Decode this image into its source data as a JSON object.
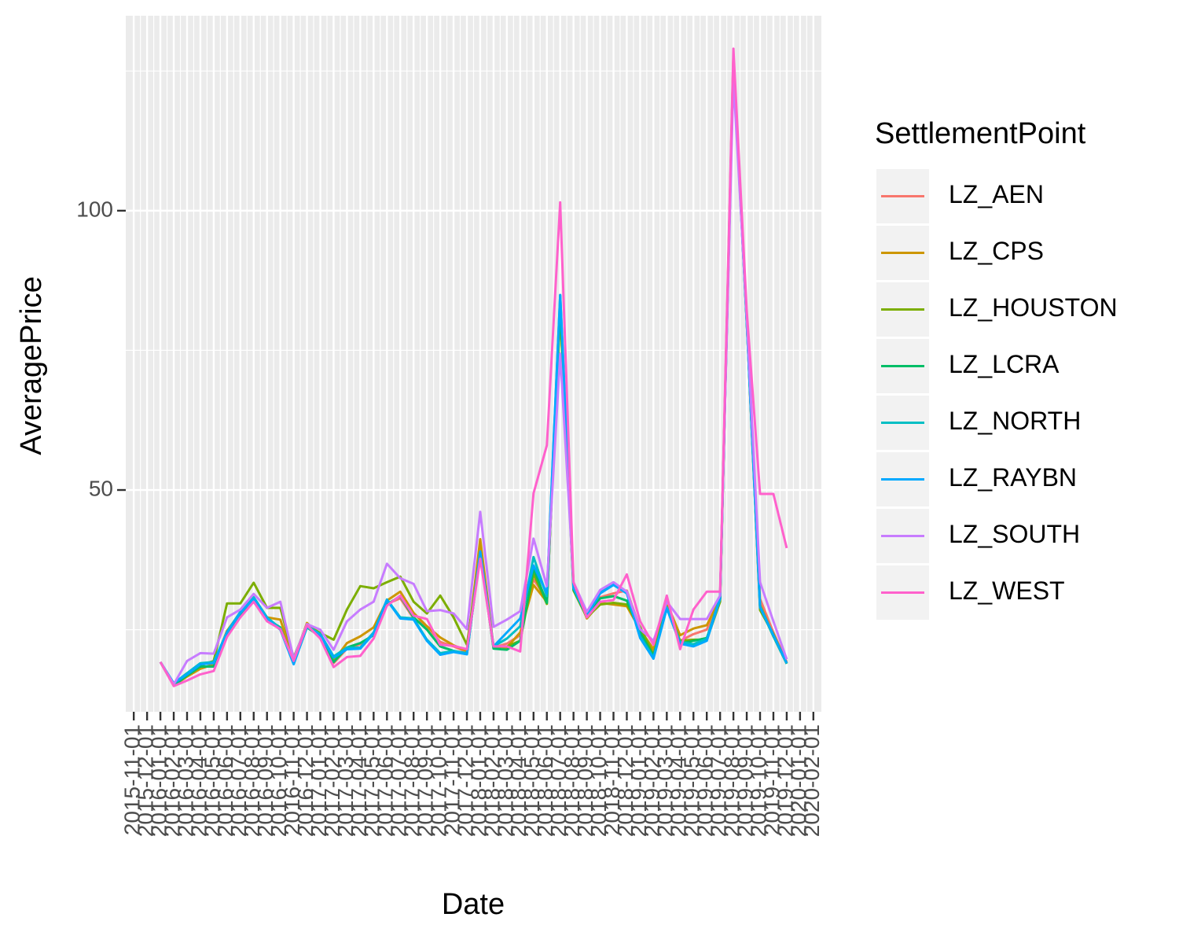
{
  "chart_data": {
    "type": "line",
    "x_label": "Date",
    "y_label": "AveragePrice",
    "legend_title": "SettlementPoint",
    "legend_position": "right",
    "grid": true,
    "background": "#EBEBEB",
    "categories": [
      "2015-11-01",
      "2015-12-01",
      "2016-01-01",
      "2016-02-01",
      "2016-03-01",
      "2016-04-01",
      "2016-05-01",
      "2016-06-01",
      "2016-07-01",
      "2016-08-01",
      "2016-09-01",
      "2016-10-01",
      "2016-11-01",
      "2016-12-01",
      "2017-01-01",
      "2017-02-01",
      "2017-03-01",
      "2017-04-01",
      "2017-05-01",
      "2017-06-01",
      "2017-07-01",
      "2017-08-01",
      "2017-09-01",
      "2017-10-01",
      "2017-11-01",
      "2017-12-01",
      "2018-01-01",
      "2018-02-01",
      "2018-03-01",
      "2018-04-01",
      "2018-05-01",
      "2018-06-01",
      "2018-07-01",
      "2018-08-01",
      "2018-09-01",
      "2018-10-01",
      "2018-11-01",
      "2018-12-01",
      "2019-01-01",
      "2019-02-01",
      "2019-03-01",
      "2019-04-01",
      "2019-05-01",
      "2019-06-01",
      "2019-07-01",
      "2019-08-01",
      "2019-09-01",
      "2019-10-01",
      "2019-11-01",
      "2019-12-01",
      "2020-01-01",
      "2020-02-01"
    ],
    "ylim": [
      10.3,
      134.9
    ],
    "yticks": [
      50,
      100
    ],
    "minor_yticks": [
      25,
      75,
      125
    ],
    "series": [
      {
        "name": "LZ_AEN",
        "color": "#F8766D",
        "values": [
          null,
          null,
          19.2,
          15.2,
          16.8,
          18.2,
          18.6,
          24.0,
          27.6,
          30.0,
          26.8,
          25.0,
          19.2,
          25.6,
          23.6,
          19.0,
          21.6,
          22.4,
          24.2,
          29.6,
          30.6,
          27.0,
          25.6,
          22.8,
          22.0,
          21.0,
          39.5,
          21.8,
          22.5,
          24.0,
          34.0,
          30.5,
          82.0,
          33.0,
          27.3,
          30.8,
          31.5,
          32.0,
          25.2,
          21.0,
          29.5,
          23.0,
          24.2,
          25.0,
          30.8,
          127.5,
          80.5,
          30.5,
          24.5,
          19.2,
          null,
          null
        ]
      },
      {
        "name": "LZ_CPS",
        "color": "#CD9600",
        "values": [
          null,
          null,
          19.2,
          15.0,
          16.6,
          18.0,
          18.8,
          24.8,
          28.0,
          30.6,
          27.2,
          26.8,
          19.6,
          26.2,
          24.0,
          19.4,
          22.6,
          23.8,
          25.4,
          30.2,
          31.8,
          28.0,
          25.6,
          23.6,
          22.2,
          21.2,
          41.2,
          22.0,
          21.8,
          24.5,
          33.0,
          30.0,
          81.5,
          33.2,
          27.0,
          29.8,
          29.5,
          29.2,
          25.0,
          21.5,
          29.8,
          24.0,
          25.2,
          25.8,
          30.5,
          127.8,
          80.2,
          29.5,
          24.0,
          19.0,
          null,
          null
        ]
      },
      {
        "name": "LZ_HOUSTON",
        "color": "#7CAE00",
        "values": [
          null,
          null,
          19.2,
          15.2,
          17.2,
          18.6,
          19.4,
          29.7,
          29.7,
          33.4,
          28.9,
          28.9,
          20.0,
          25.8,
          24.4,
          23.2,
          28.6,
          32.8,
          32.4,
          33.5,
          34.5,
          30.0,
          27.9,
          31.1,
          27.2,
          22.3,
          38.5,
          21.8,
          22.0,
          23.0,
          35.0,
          29.6,
          82.5,
          32.0,
          27.2,
          29.5,
          29.8,
          29.5,
          25.5,
          20.5,
          29.0,
          23.0,
          23.2,
          23.2,
          30.0,
          126.5,
          80.0,
          28.5,
          24.2,
          19.0,
          null,
          null
        ]
      },
      {
        "name": "LZ_LCRA",
        "color": "#00BE67",
        "values": [
          null,
          null,
          19.2,
          15.0,
          16.8,
          18.4,
          18.4,
          24.2,
          27.8,
          30.3,
          26.9,
          25.4,
          19.0,
          25.4,
          23.8,
          19.2,
          21.8,
          22.6,
          24.0,
          29.5,
          31.0,
          27.2,
          25.0,
          22.0,
          21.2,
          20.6,
          38.8,
          21.6,
          21.4,
          23.0,
          36.0,
          29.8,
          83.0,
          32.2,
          27.4,
          30.6,
          31.0,
          30.2,
          24.5,
          20.3,
          29.0,
          22.5,
          23.0,
          23.5,
          30.5,
          126.8,
          80.4,
          29.0,
          23.8,
          18.9,
          null,
          null
        ]
      },
      {
        "name": "LZ_NORTH",
        "color": "#00BFC4",
        "values": [
          null,
          null,
          19.2,
          15.4,
          17.2,
          19.0,
          19.2,
          24.6,
          28.2,
          30.8,
          27.2,
          25.2,
          18.9,
          25.7,
          24.2,
          20.2,
          21.8,
          21.8,
          24.5,
          30.4,
          27.2,
          27.0,
          23.2,
          20.8,
          21.2,
          20.8,
          38.6,
          22.0,
          23.4,
          25.6,
          38.0,
          31.0,
          84.9,
          32.8,
          27.6,
          31.8,
          33.2,
          31.8,
          23.8,
          20.0,
          29.0,
          22.8,
          22.4,
          23.4,
          30.8,
          126.2,
          80.2,
          29.2,
          24.0,
          19.0,
          null,
          null
        ]
      },
      {
        "name": "LZ_RAYBN",
        "color": "#00A9FF",
        "values": [
          null,
          null,
          19.2,
          15.4,
          17.0,
          18.8,
          19.0,
          24.5,
          28.0,
          30.5,
          27.0,
          25.0,
          18.8,
          25.5,
          24.0,
          20.0,
          21.5,
          21.6,
          24.3,
          30.3,
          27.0,
          26.8,
          23.0,
          20.5,
          21.0,
          20.6,
          39.0,
          22.0,
          24.5,
          27.0,
          36.5,
          31.5,
          84.9,
          32.5,
          27.5,
          31.5,
          33.0,
          31.5,
          23.5,
          19.8,
          28.8,
          22.5,
          22.0,
          23.0,
          30.5,
          126.0,
          80.0,
          29.0,
          24.0,
          19.0,
          null,
          null
        ]
      },
      {
        "name": "LZ_SOUTH",
        "color": "#C77CFF",
        "values": [
          null,
          null,
          19.2,
          15.2,
          19.4,
          20.8,
          20.7,
          27.2,
          28.6,
          31.4,
          28.9,
          30.0,
          19.8,
          26.0,
          25.0,
          21.4,
          26.5,
          28.6,
          30.0,
          36.8,
          34.2,
          33.2,
          28.3,
          28.5,
          27.9,
          25.1,
          46.1,
          25.5,
          26.8,
          28.3,
          41.3,
          32.8,
          74.4,
          33.5,
          28.2,
          32.1,
          33.5,
          31.8,
          25.1,
          23.0,
          30.0,
          26.9,
          26.9,
          26.9,
          31.1,
          123.7,
          81.0,
          33.5,
          26.5,
          19.7,
          null,
          null
        ]
      },
      {
        "name": "LZ_WEST",
        "color": "#FF61CC",
        "values": [
          null,
          null,
          19.2,
          14.9,
          15.9,
          17.0,
          17.6,
          23.7,
          27.2,
          30.0,
          26.5,
          25.1,
          19.4,
          25.8,
          23.4,
          18.3,
          20.1,
          20.3,
          23.4,
          29.3,
          31.1,
          27.5,
          26.9,
          22.3,
          22.1,
          21.5,
          37.7,
          22.0,
          22.0,
          21.1,
          49.4,
          58.0,
          101.5,
          33.5,
          27.2,
          30.0,
          30.3,
          34.9,
          26.5,
          22.3,
          31.1,
          21.5,
          28.6,
          31.8,
          31.8,
          129.0,
          82.1,
          49.3,
          49.3,
          39.6,
          null,
          null
        ]
      }
    ]
  }
}
